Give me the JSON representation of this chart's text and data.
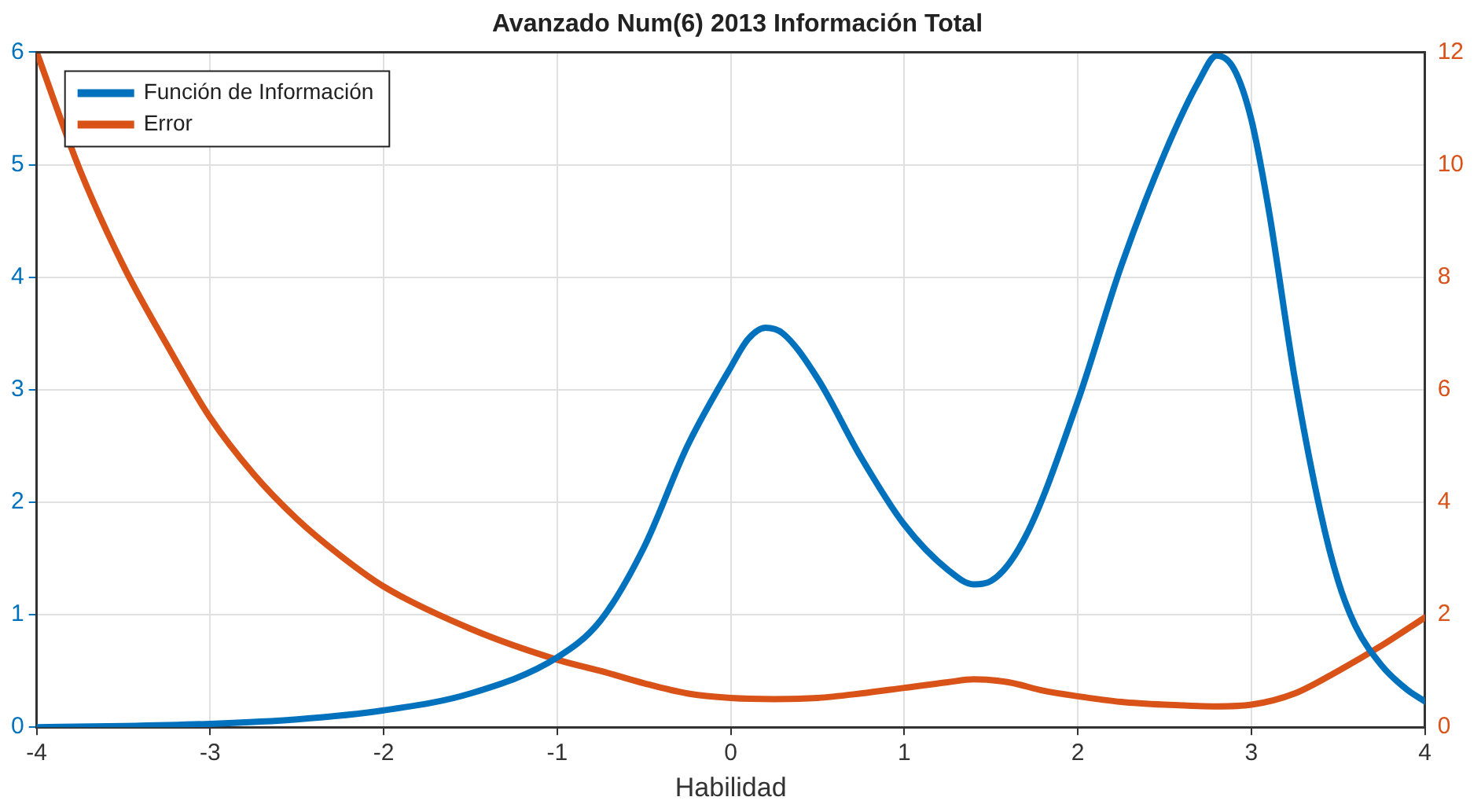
{
  "chart_data": {
    "type": "line",
    "title": "Avanzado Num(6) 2013 Información Total",
    "xlabel": "Habilidad",
    "xlim": [
      -4,
      4
    ],
    "xticks": [
      -4,
      -3,
      -2,
      -1,
      0,
      1,
      2,
      3,
      4
    ],
    "ylim": [
      0,
      6
    ],
    "yticks": [
      0,
      1,
      2,
      3,
      4,
      5,
      6
    ],
    "y2lim": [
      0,
      12
    ],
    "y2ticks": [
      0,
      2,
      4,
      6,
      8,
      10,
      12
    ],
    "grid": true,
    "legend": "top left",
    "marker": "none",
    "line_style": "solid",
    "series": [
      {
        "name": "Función de Información",
        "color": "#0072bd",
        "x": [
          -4,
          -3.5,
          -3,
          -2.5,
          -2,
          -1.5,
          -1,
          -0.75,
          -0.5,
          -0.25,
          0,
          0.1,
          0.2,
          0.3,
          0.5,
          0.75,
          1,
          1.25,
          1.4,
          1.5,
          1.7,
          2,
          2.25,
          2.5,
          2.7,
          2.8,
          2.9,
          3,
          3.1,
          3.25,
          3.4,
          3.5,
          3.6,
          3.75,
          3.9,
          4
        ],
        "values": [
          0,
          0.01,
          0.03,
          0.07,
          0.15,
          0.3,
          0.62,
          0.95,
          1.6,
          2.5,
          3.2,
          3.45,
          3.55,
          3.5,
          3.1,
          2.4,
          1.8,
          1.4,
          1.27,
          1.3,
          1.7,
          2.9,
          4.1,
          5.1,
          5.75,
          5.97,
          5.85,
          5.4,
          4.6,
          3.1,
          1.9,
          1.3,
          0.9,
          0.55,
          0.33,
          0.23
        ]
      },
      {
        "name": "Error",
        "color": "#d95319",
        "axis": "y2",
        "x": [
          -4,
          -3.75,
          -3.5,
          -3.25,
          -3,
          -2.75,
          -2.5,
          -2.25,
          -2,
          -1.5,
          -1,
          -0.75,
          -0.5,
          -0.25,
          0,
          0.25,
          0.5,
          0.75,
          1,
          1.25,
          1.4,
          1.6,
          1.8,
          2,
          2.25,
          2.5,
          2.8,
          3,
          3.25,
          3.5,
          3.75,
          4
        ],
        "values": [
          12,
          9.9,
          8.2,
          6.8,
          5.5,
          4.5,
          3.7,
          3.05,
          2.5,
          1.75,
          1.2,
          1,
          0.78,
          0.6,
          0.52,
          0.5,
          0.52,
          0.6,
          0.7,
          0.8,
          0.85,
          0.8,
          0.65,
          0.55,
          0.45,
          0.4,
          0.37,
          0.4,
          0.6,
          1,
          1.45,
          1.95
        ]
      }
    ]
  }
}
